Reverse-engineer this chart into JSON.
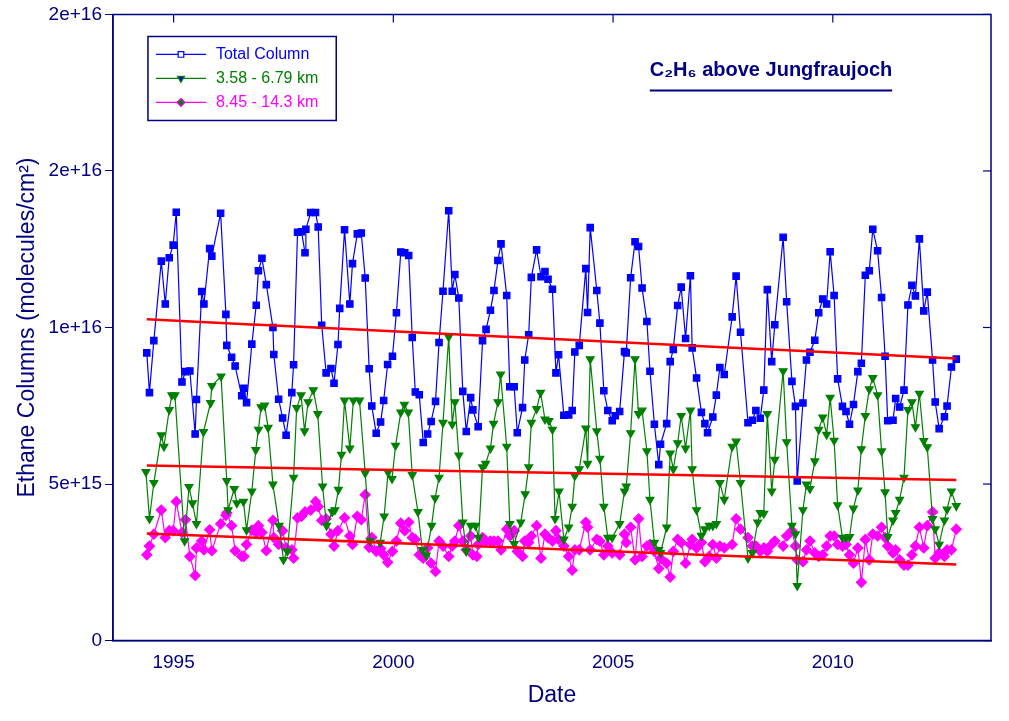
{
  "chart_data": {
    "type": "line",
    "title": "C₂H₆ above Jungfraujoch",
    "xlabel": "Date",
    "ylabel": "Ethane Columns (molecules/cm²)",
    "xlim": [
      1993.62,
      2013.6
    ],
    "xticks": [
      1995,
      2000,
      2005,
      2010
    ],
    "ylim": [
      0,
      2e+16
    ],
    "yticks": [
      0,
      {
        "value": 5000000000000000.0,
        "label": "5e+15"
      },
      {
        "value": 1e+16,
        "label": "1e+16"
      },
      {
        "value": 1.5e+16,
        "label": "2e+16"
      },
      {
        "value": 2e+16,
        "label": "2e+16"
      }
    ],
    "grid": false,
    "legend": "top left",
    "series": [
      {
        "name": "Total Column",
        "color": "#0000ff",
        "marker": "square",
        "x": [
          1994.39,
          1994.45,
          1994.55,
          1994.72,
          1994.81,
          1994.9,
          1994.99,
          1995.06,
          1995.19,
          1995.27,
          1995.37,
          1995.49,
          1995.52,
          1995.64,
          1995.69,
          1995.82,
          1995.87,
          1996.07,
          1996.19,
          1996.21,
          1996.32,
          1996.4,
          1996.55,
          1996.6,
          1996.66,
          1996.78,
          1996.88,
          1996.93,
          1997.01,
          1997.11,
          1997.26,
          1997.28,
          1997.39,
          1997.48,
          1997.56,
          1997.69,
          1997.73,
          1997.82,
          1997.91,
          1997.99,
          1998.01,
          1998.12,
          1998.23,
          1998.29,
          1998.37,
          1998.47,
          1998.58,
          1998.65,
          1998.74,
          1998.78,
          1998.89,
          1999.01,
          1999.07,
          1999.18,
          1999.27,
          1999.36,
          1999.45,
          1999.51,
          1999.61,
          1999.71,
          1999.78,
          1999.87,
          1999.98,
          2000.07,
          2000.17,
          2000.26,
          2000.35,
          2000.43,
          2000.5,
          2000.59,
          2000.68,
          2000.78,
          2000.86,
          2000.96,
          2001.04,
          2001.13,
          2001.26,
          2001.34,
          2001.4,
          2001.49,
          2001.58,
          2001.66,
          2001.76,
          2001.81,
          2001.93,
          2002.03,
          2002.11,
          2002.21,
          2002.29,
          2002.38,
          2002.45,
          2002.58,
          2002.65,
          2002.75,
          2002.82,
          2002.94,
          2002.99,
          2003.08,
          2003.14,
          2003.26,
          2003.36,
          2003.45,
          2003.52,
          2003.62,
          2003.7,
          2003.76,
          2003.88,
          2003.99,
          2004.07,
          2004.13,
          2004.23,
          2004.38,
          2004.42,
          2004.48,
          2004.63,
          2004.7,
          2004.79,
          2004.88,
          2004.98,
          2005.05,
          2005.15,
          2005.26,
          2005.3,
          2005.4,
          2005.5,
          2005.58,
          2005.66,
          2005.77,
          2005.84,
          2005.94,
          2006.04,
          2006.08,
          2006.22,
          2006.3,
          2006.37,
          2006.47,
          2006.55,
          2006.65,
          2006.76,
          2006.8,
          2006.9,
          2007.01,
          2007.09,
          2007.15,
          2007.27,
          2007.35,
          2007.43,
          2007.53,
          2007.71,
          2007.8,
          2007.9,
          2008.07,
          2008.17,
          2008.25,
          2008.35,
          2008.43,
          2008.51,
          2008.61,
          2008.68,
          2008.87,
          2008.95,
          2009.07,
          2009.15,
          2009.19,
          2009.32,
          2009.4,
          2009.48,
          2009.59,
          2009.68,
          2009.77,
          2009.86,
          2009.94,
          2010.03,
          2010.11,
          2010.22,
          2010.3,
          2010.38,
          2010.47,
          2010.57,
          2010.65,
          2010.74,
          2010.83,
          2010.91,
          2011.02,
          2011.11,
          2011.19,
          2011.25,
          2011.37,
          2011.43,
          2011.52,
          2011.62,
          2011.71,
          2011.8,
          2011.88,
          2011.97,
          2012.07,
          2012.15,
          2012.27,
          2012.33,
          2012.42,
          2012.54,
          2012.6,
          2012.7,
          2012.81
        ],
        "values": [
          9190000000000000.0,
          7920000000000000.0,
          9580000000000000.0,
          1.212e+16,
          1.075e+16,
          1.223e+16,
          1.263e+16,
          1.368e+16,
          8260000000000000.0,
          8590000000000000.0,
          8610000000000000.0,
          6600000000000000.0,
          7700000000000000.0,
          1.115e+16,
          1.075e+16,
          1.252e+16,
          1.228e+16,
          1.365e+16,
          1.042e+16,
          9430000000000000.0,
          9050000000000000.0,
          8770000000000000.0,
          7820000000000000.0,
          8060000000000000.0,
          7600000000000000.0,
          9470000000000000.0,
          1.071e+16,
          1.181e+16,
          1.221e+16,
          1.137e+16,
          1e+16,
          9140000000000000.0,
          7710000000000000.0,
          7110000000000000.0,
          6560000000000000.0,
          7920000000000000.0,
          8810000000000000.0,
          1.304e+16,
          1.306e+16,
          1.239e+16,
          1.314e+16,
          1.367e+16,
          1.367e+16,
          1.321e+16,
          1.007e+16,
          8550000000000000.0,
          8690000000000000.0,
          8220000000000000.0,
          9460000000000000.0,
          1.061e+16,
          1.312e+16,
          1.075e+16,
          1.204e+16,
          1.299e+16,
          1.302e+16,
          1.158e+16,
          8680000000000000.0,
          7490000000000000.0,
          6620000000000000.0,
          6980000000000000.0,
          7670000000000000.0,
          8820000000000000.0,
          9080000000000000.0,
          1.047e+16,
          1.241e+16,
          1.239e+16,
          1.23e+16,
          9680000000000000.0,
          7940000000000000.0,
          7850000000000000.0,
          6330000000000000.0,
          6600000000000000.0,
          7000000000000000.0,
          7640000000000000.0,
          9520000000000000.0,
          1.116e+16,
          1.373e+16,
          1.116e+16,
          1.169e+16,
          1.094e+16,
          7960000000000000.0,
          6680000000000000.0,
          7760000000000000.0,
          7370000000000000.0,
          6830000000000000.0,
          9580000000000000.0,
          9940000000000000.0,
          1.055e+16,
          1.118e+16,
          1.214e+16,
          1.267e+16,
          1.102e+16,
          8110000000000000.0,
          8110000000000000.0,
          6640000000000000.0,
          7440000000000000.0,
          8960000000000000.0,
          9770000000000000.0,
          1.16e+16,
          1.248e+16,
          1.162e+16,
          1.179e+16,
          1.154e+16,
          1.122e+16,
          8550000000000000.0,
          9130000000000000.0,
          7200000000000000.0,
          7210000000000000.0,
          7350000000000000.0,
          9220000000000000.0,
          9430000000000000.0,
          1.188e+16,
          1.048e+16,
          1.319e+16,
          1.118e+16,
          1.014e+16,
          7980000000000000.0,
          7350000000000000.0,
          7020000000000000.0,
          7180000000000000.0,
          7320000000000000.0,
          9230000000000000.0,
          9190000000000000.0,
          1.159e+16,
          1.274e+16,
          1.259e+16,
          1.126e+16,
          1.019e+16,
          8600000000000000.0,
          6910000000000000.0,
          5620000000000000.0,
          6270000000000000.0,
          6930000000000000.0,
          8910000000000000.0,
          9300000000000000.0,
          1.07e+16,
          1.129e+16,
          9650000000000000.0,
          1.165e+16,
          9350000000000000.0,
          8390000000000000.0,
          7290000000000000.0,
          6930000000000000.0,
          6640000000000000.0,
          7140000000000000.0,
          7840000000000000.0,
          8720000000000000.0,
          8500000000000000.0,
          1.034e+16,
          1.164e+16,
          9850000000000000.0,
          6960000000000000.0,
          7040000000000000.0,
          7350000000000000.0,
          7100000000000000.0,
          8000000000000000.0,
          1.121e+16,
          8910000000000000.0,
          1.009e+16,
          1.288e+16,
          1.082e+16,
          8280000000000000.0,
          7480000000000000.0,
          5100000000000000.0,
          7590000000000000.0,
          8960000000000000.0,
          9210000000000000.0,
          9590000000000000.0,
          1.047e+16,
          1.091e+16,
          1.075e+16,
          1.242e+16,
          1.102e+16,
          8360000000000000.0,
          7480000000000000.0,
          7320000000000000.0,
          6910000000000000.0,
          7540000000000000.0,
          8590000000000000.0,
          8860000000000000.0,
          1.167e+16,
          1.181e+16,
          1.314e+16,
          1.245e+16,
          1.096e+16,
          9080000000000000.0,
          7020000000000000.0,
          7040000000000000.0,
          7730000000000000.0,
          7460000000000000.0,
          8000000000000000.0,
          1.072e+16,
          1.135e+16,
          1.101e+16,
          1.283e+16,
          1.053e+16,
          1.113e+16,
          8960000000000000.0,
          7620000000000000.0,
          6770000000000000.0,
          7150000000000000.0,
          7490000000000000.0,
          8740000000000000.0,
          8990000000000000.0
        ]
      },
      {
        "name": "3.58 - 6.79 km",
        "color": "#008000",
        "marker": "triangle",
        "x": [
          1994.37,
          1994.45,
          1994.55,
          1994.72,
          1994.78,
          1994.9,
          1994.96,
          1995.03,
          1995.25,
          1995.35,
          1995.43,
          1995.52,
          1995.68,
          1995.84,
          1995.87,
          1996.08,
          1996.21,
          1996.24,
          1996.38,
          1996.44,
          1996.59,
          1996.66,
          1996.78,
          1996.87,
          1996.93,
          1996.99,
          1997.07,
          1997.15,
          1997.26,
          1997.4,
          1997.5,
          1997.59,
          1997.73,
          1997.8,
          1997.9,
          1997.98,
          1998.06,
          1998.18,
          1998.28,
          1998.39,
          1998.48,
          1998.61,
          1998.67,
          1998.75,
          1998.82,
          1998.89,
          1999.01,
          1999.09,
          1999.23,
          1999.36,
          1999.47,
          1999.7,
          1999.79,
          1999.88,
          1999.97,
          2000.05,
          2000.17,
          2000.25,
          2000.34,
          2000.43,
          2000.56,
          2000.66,
          2000.75,
          2000.87,
          2000.95,
          2001.04,
          2001.13,
          2001.26,
          2001.34,
          2001.4,
          2001.49,
          2001.58,
          2001.66,
          2001.76,
          2001.87,
          2001.94,
          2002.03,
          2002.1,
          2002.21,
          2002.28,
          2002.38,
          2002.44,
          2002.58,
          2002.65,
          2002.75,
          2002.9,
          2003.0,
          2003.08,
          2003.14,
          2003.26,
          2003.35,
          2003.45,
          2003.54,
          2003.62,
          2003.68,
          2003.77,
          2003.88,
          2003.99,
          2004.07,
          2004.13,
          2004.23,
          2004.38,
          2004.42,
          2004.48,
          2004.63,
          2004.7,
          2004.79,
          2004.88,
          2004.98,
          2005.15,
          2005.26,
          2005.3,
          2005.4,
          2005.5,
          2005.58,
          2005.66,
          2005.77,
          2005.84,
          2005.94,
          2006.04,
          2006.08,
          2006.22,
          2006.3,
          2006.37,
          2006.47,
          2006.55,
          2006.65,
          2006.76,
          2006.8,
          2006.9,
          2007.01,
          2007.09,
          2007.19,
          2007.27,
          2007.35,
          2007.43,
          2007.53,
          2007.71,
          2007.8,
          2007.9,
          2008.07,
          2008.17,
          2008.29,
          2008.35,
          2008.43,
          2008.51,
          2008.61,
          2008.68,
          2008.87,
          2008.95,
          2009.07,
          2009.15,
          2009.19,
          2009.32,
          2009.4,
          2009.48,
          2009.59,
          2009.68,
          2009.77,
          2009.86,
          2009.94,
          2010.03,
          2010.11,
          2010.22,
          2010.3,
          2010.38,
          2010.47,
          2010.57,
          2010.65,
          2010.74,
          2010.83,
          2010.91,
          2011.02,
          2011.11,
          2011.19,
          2011.25,
          2011.37,
          2011.43,
          2011.52,
          2011.62,
          2011.71,
          2011.8,
          2011.88,
          2011.97,
          2012.07,
          2012.15,
          2012.27,
          2012.33,
          2012.42,
          2012.54,
          2012.6,
          2012.7,
          2012.81
        ],
        "values": [
          5390000000000000.0,
          3890000000000000.0,
          5040000000000000.0,
          6560000000000000.0,
          6200000000000000.0,
          7370000000000000.0,
          7840000000000000.0,
          7840000000000000.0,
          3180000000000000.0,
          4910000000000000.0,
          4390000000000000.0,
          3730000000000000.0,
          6670000000000000.0,
          7590000000000000.0,
          8140000000000000.0,
          8440000000000000.0,
          5100000000000000.0,
          4170000000000000.0,
          4850000000000000.0,
          4390000000000000.0,
          4440000000000000.0,
          3530000000000000.0,
          4770000000000000.0,
          6090000000000000.0,
          6740000000000000.0,
          7460000000000000.0,
          7510000000000000.0,
          6800000000000000.0,
          4990000000000000.0,
          3670000000000000.0,
          2580000000000000.0,
          2850000000000000.0,
          5210000000000000.0,
          7430000000000000.0,
          7840000000000000.0,
          6690000000000000.0,
          7620000000000000.0,
          8000000000000000.0,
          7240000000000000.0,
          4930000000000000.0,
          3670000000000000.0,
          4110000000000000.0,
          4170000000000000.0,
          4820000000000000.0,
          5940000000000000.0,
          7670000000000000.0,
          6140000000000000.0,
          7670000000000000.0,
          7670000000000000.0,
          5350000000000000.0,
          3180000000000000.0,
          3130000000000000.0,
          3970000000000000.0,
          5370000000000000.0,
          5170000000000000.0,
          6230000000000000.0,
          7290000000000000.0,
          7540000000000000.0,
          7290000000000000.0,
          5290000000000000.0,
          4110000000000000.0,
          2900000000000000.0,
          2720000000000000.0,
          3670000000000000.0,
          4550000000000000.0,
          5210000000000000.0,
          6960000000000000.0,
          9700000000000000.0,
          6910000000000000.0,
          7620000000000000.0,
          5920000000000000.0,
          3780000000000000.0,
          2850000000000000.0,
          3670000000000000.0,
          3670000000000000.0,
          3290000000000000.0,
          5540000000000000.0,
          5650000000000000.0,
          6140000000000000.0,
          6930000000000000.0,
          7620000000000000.0,
          8500000000000000.0,
          6200000000000000.0,
          3730000000000000.0,
          3090000000000000.0,
          3780000000000000.0,
          4680000000000000.0,
          5540000000000000.0,
          6960000000000000.0,
          7400000000000000.0,
          7920000000000000.0,
          7070000000000000.0,
          7020000000000000.0,
          6740000000000000.0,
          3890000000000000.0,
          4770000000000000.0,
          3230000000000000.0,
          3620000000000000.0,
          4280000000000000.0,
          5260000000000000.0,
          5480000000000000.0,
          6780000000000000.0,
          5650000000000000.0,
          8990000000000000.0,
          6690000000000000.0,
          5810000000000000.0,
          4280000000000000.0,
          3290000000000000.0,
          3290000000000000.0,
          3730000000000000.0,
          4770000000000000.0,
          4930000000000000.0,
          6630000000000000.0,
          8990000000000000.0,
          7240000000000000.0,
          7350000000000000.0,
          6050000000000000.0,
          4500000000000000.0,
          3130000000000000.0,
          2900000000000000.0,
          2800000000000000.0,
          3620000000000000.0,
          5980000000000000.0,
          5480000000000000.0,
          6310000000000000.0,
          7180000000000000.0,
          6140000000000000.0,
          7350000000000000.0,
          5480000000000000.0,
          4170000000000000.0,
          3350000000000000.0,
          3560000000000000.0,
          3670000000000000.0,
          3670000000000000.0,
          3730000000000000.0,
          5040000000000000.0,
          4500000000000000.0,
          6200000000000000.0,
          6360000000000000.0,
          5040000000000000.0,
          2630000000000000.0,
          2800000000000000.0,
          3780000000000000.0,
          4080000000000000.0,
          4060000000000000.0,
          7240000000000000.0,
          4770000000000000.0,
          5780000000000000.0,
          8610000000000000.0,
          6340000000000000.0,
          3670000000000000.0,
          3400000000000000.0,
          1750000000000000.0,
          4170000000000000.0,
          4990000000000000.0,
          4850000000000000.0,
          5730000000000000.0,
          6740000000000000.0,
          7130000000000000.0,
          6580000000000000.0,
          7760000000000000.0,
          6390000000000000.0,
          4330000000000000.0,
          3290000000000000.0,
          3290000000000000.0,
          3310000000000000.0,
          4220000000000000.0,
          4800000000000000.0,
          6120000000000000.0,
          7180000000000000.0,
          8030000000000000.0,
          8390000000000000.0,
          7840000000000000.0,
          6050000000000000.0,
          4740000000000000.0,
          3310000000000000.0,
          3840000000000000.0,
          4080000000000000.0,
          4500000000000000.0,
          5210000000000000.0,
          7370000000000000.0,
          7620000000000000.0,
          6820000000000000.0,
          7890000000000000.0,
          6380000000000000.0,
          6180000000000000.0,
          3890000000000000.0,
          3560000000000000.0,
          3070000000000000.0,
          3840000000000000.0,
          4190000000000000.0,
          4770000000000000.0,
          4300000000000000.0
        ]
      },
      {
        "name": "8.45 - 14.3 km",
        "color": "#ff00ff",
        "marker": "diamond",
        "x": [
          1994.39,
          1994.45,
          1994.55,
          1994.72,
          1994.81,
          1994.9,
          1994.99,
          1995.06,
          1995.19,
          1995.27,
          1995.37,
          1995.49,
          1995.52,
          1995.64,
          1995.69,
          1995.82,
          1995.87,
          1996.07,
          1996.19,
          1996.21,
          1996.32,
          1996.4,
          1996.55,
          1996.6,
          1996.66,
          1996.78,
          1996.88,
          1996.93,
          1997.01,
          1997.11,
          1997.26,
          1997.28,
          1997.39,
          1997.48,
          1997.56,
          1997.69,
          1997.73,
          1997.82,
          1997.91,
          1997.99,
          1998.12,
          1998.23,
          1998.29,
          1998.37,
          1998.47,
          1998.58,
          1998.65,
          1998.74,
          1998.89,
          1999.01,
          1999.07,
          1999.18,
          1999.27,
          1999.36,
          1999.45,
          1999.51,
          1999.61,
          1999.71,
          1999.78,
          1999.87,
          1999.98,
          2000.07,
          2000.17,
          2000.26,
          2000.35,
          2000.43,
          2000.5,
          2000.59,
          2000.68,
          2000.78,
          2000.86,
          2000.96,
          2001.04,
          2001.13,
          2001.26,
          2001.34,
          2001.4,
          2001.49,
          2001.58,
          2001.66,
          2001.76,
          2001.81,
          2001.9,
          2001.93,
          2002.03,
          2002.11,
          2002.21,
          2002.29,
          2002.38,
          2002.45,
          2002.58,
          2002.65,
          2002.75,
          2002.82,
          2002.94,
          2002.99,
          2003.08,
          2003.14,
          2003.26,
          2003.36,
          2003.45,
          2003.52,
          2003.62,
          2003.7,
          2003.76,
          2003.88,
          2003.99,
          2004.07,
          2004.13,
          2004.23,
          2004.38,
          2004.42,
          2004.48,
          2004.63,
          2004.7,
          2004.79,
          2004.88,
          2004.98,
          2005.15,
          2005.26,
          2005.3,
          2005.4,
          2005.5,
          2005.58,
          2005.66,
          2005.77,
          2005.84,
          2005.94,
          2006.04,
          2006.08,
          2006.22,
          2006.3,
          2006.37,
          2006.47,
          2006.55,
          2006.65,
          2006.76,
          2006.8,
          2006.9,
          2007.01,
          2007.09,
          2007.19,
          2007.27,
          2007.35,
          2007.43,
          2007.53,
          2007.71,
          2007.8,
          2007.9,
          2008.07,
          2008.17,
          2008.25,
          2008.35,
          2008.43,
          2008.51,
          2008.61,
          2008.68,
          2008.87,
          2008.95,
          2009.07,
          2009.15,
          2009.19,
          2009.32,
          2009.4,
          2009.48,
          2009.59,
          2009.68,
          2009.77,
          2009.86,
          2009.94,
          2010.03,
          2010.11,
          2010.22,
          2010.3,
          2010.38,
          2010.47,
          2010.57,
          2010.65,
          2010.74,
          2010.83,
          2010.91,
          2011.02,
          2011.11,
          2011.19,
          2011.25,
          2011.37,
          2011.43,
          2011.52,
          2011.62,
          2011.71,
          2011.8,
          2011.88,
          2011.97,
          2012.07,
          2012.15,
          2012.27,
          2012.33,
          2012.42,
          2012.54,
          2012.6,
          2012.7,
          2012.81
        ],
        "values": [
          2740000000000000.0,
          3020000000000000.0,
          3400000000000000.0,
          4170000000000000.0,
          3290000000000000.0,
          3510000000000000.0,
          3510000000000000.0,
          4440000000000000.0,
          3450000000000000.0,
          3860000000000000.0,
          2690000000000000.0,
          2080000000000000.0,
          2960000000000000.0,
          3180000000000000.0,
          2900000000000000.0,
          3540000000000000.0,
          2870000000000000.0,
          3730000000000000.0,
          4000000000000000.0,
          4080000000000000.0,
          3670000000000000.0,
          2870000000000000.0,
          2690000000000000.0,
          2690000000000000.0,
          3070000000000000.0,
          3530000000000000.0,
          3450000000000000.0,
          3670000000000000.0,
          3450000000000000.0,
          2870000000000000.0,
          3840000000000000.0,
          3290000000000000.0,
          3070000000000000.0,
          3510000000000000.0,
          2960000000000000.0,
          2900000000000000.0,
          2630000000000000.0,
          3920000000000000.0,
          3970000000000000.0,
          4110000000000000.0,
          4170000000000000.0,
          4440000000000000.0,
          4280000000000000.0,
          3840000000000000.0,
          3890000000000000.0,
          3400000000000000.0,
          3020000000000000.0,
          3510000000000000.0,
          3920000000000000.0,
          3340000000000000.0,
          3070000000000000.0,
          3970000000000000.0,
          3860000000000000.0,
          4660000000000000.0,
          2980000000000000.0,
          3290000000000000.0,
          2850000000000000.0,
          2940000000000000.0,
          2740000000000000.0,
          2500000000000000.0,
          2850000000000000.0,
          3180000000000000.0,
          3750000000000000.0,
          3510000000000000.0,
          3780000000000000.0,
          3290000000000000.0,
          3230000000000000.0,
          2740000000000000.0,
          2630000000000000.0,
          2960000000000000.0,
          2470000000000000.0,
          2210000000000000.0,
          3180000000000000.0,
          3020000000000000.0,
          2690000000000000.0,
          3020000000000000.0,
          3180000000000000.0,
          3670000000000000.0,
          3180000000000000.0,
          2900000000000000.0,
          3340000000000000.0,
          2740000000000000.0,
          2690000000000000.0,
          3070000000000000.0,
          3290000000000000.0,
          3180000000000000.0,
          3180000000000000.0,
          3180000000000000.0,
          3180000000000000.0,
          2900000000000000.0,
          3560000000000000.0,
          3340000000000000.0,
          3510000000000000.0,
          2850000000000000.0,
          2690000000000000.0,
          3180000000000000.0,
          3130000000000000.0,
          3340000000000000.0,
          3670000000000000.0,
          2630000000000000.0,
          3400000000000000.0,
          3290000000000000.0,
          3180000000000000.0,
          3510000000000000.0,
          3230000000000000.0,
          3020000000000000.0,
          2690000000000000.0,
          2250000000000000.0,
          2900000000000000.0,
          2900000000000000.0,
          3780000000000000.0,
          3620000000000000.0,
          2900000000000000.0,
          3230000000000000.0,
          3180000000000000.0,
          2740000000000000.0,
          3020000000000000.0,
          2800000000000000.0,
          2740000000000000.0,
          3400000000000000.0,
          3130000000000000.0,
          3620000000000000.0,
          2580000000000000.0,
          3890000000000000.0,
          2690000000000000.0,
          3020000000000000.0,
          3070000000000000.0,
          2850000000000000.0,
          2300000000000000.0,
          2630000000000000.0,
          2470000000000000.0,
          2030000000000000.0,
          2850000000000000.0,
          3230000000000000.0,
          3130000000000000.0,
          2470000000000000.0,
          3070000000000000.0,
          3230000000000000.0,
          2960000000000000.0,
          3130000000000000.0,
          2520000000000000.0,
          2690000000000000.0,
          3070000000000000.0,
          2630000000000000.0,
          3020000000000000.0,
          2960000000000000.0,
          3070000000000000.0,
          3890000000000000.0,
          3560000000000000.0,
          3290000000000000.0,
          3020000000000000.0,
          3020000000000000.0,
          2850000000000000.0,
          2960000000000000.0,
          2850000000000000.0,
          3070000000000000.0,
          3180000000000000.0,
          3020000000000000.0,
          3340000000000000.0,
          3510000000000000.0,
          3020000000000000.0,
          2580000000000000.0,
          2520000000000000.0,
          2900000000000000.0,
          3180000000000000.0,
          2800000000000000.0,
          2690000000000000.0,
          2740000000000000.0,
          3020000000000000.0,
          3340000000000000.0,
          3340000000000000.0,
          3070000000000000.0,
          3020000000000000.0,
          3070000000000000.0,
          2740000000000000.0,
          2470000000000000.0,
          2960000000000000.0,
          1860000000000000.0,
          3230000000000000.0,
          2580000000000000.0,
          3400000000000000.0,
          3340000000000000.0,
          3620000000000000.0,
          3290000000000000.0,
          3020000000000000.0,
          2800000000000000.0,
          2900000000000000.0,
          2580000000000000.0,
          2410000000000000.0,
          2410000000000000.0,
          2740000000000000.0,
          3020000000000000.0,
          3620000000000000.0,
          2960000000000000.0,
          3670000000000000.0,
          4110000000000000.0,
          2630000000000000.0,
          2800000000000000.0,
          2690000000000000.0,
          2900000000000000.0,
          2900000000000000.0,
          3560000000000000.0
        ]
      },
      {
        "type": "line",
        "color": "#ff0000",
        "marker": "none",
        "x": [
          1994.39,
          2012.81
        ],
        "values": [
          1.026e+16,
          9010000000000000.0
        ]
      },
      {
        "type": "line",
        "color": "#ff0000",
        "marker": "none",
        "x": [
          1994.39,
          2012.81
        ],
        "values": [
          5590000000000000.0,
          5130000000000000.0
        ]
      },
      {
        "type": "line",
        "color": "#ff0000",
        "marker": "none",
        "x": [
          1994.39,
          2012.81
        ],
        "values": [
          3420000000000000.0,
          2430000000000000.0
        ]
      }
    ]
  }
}
